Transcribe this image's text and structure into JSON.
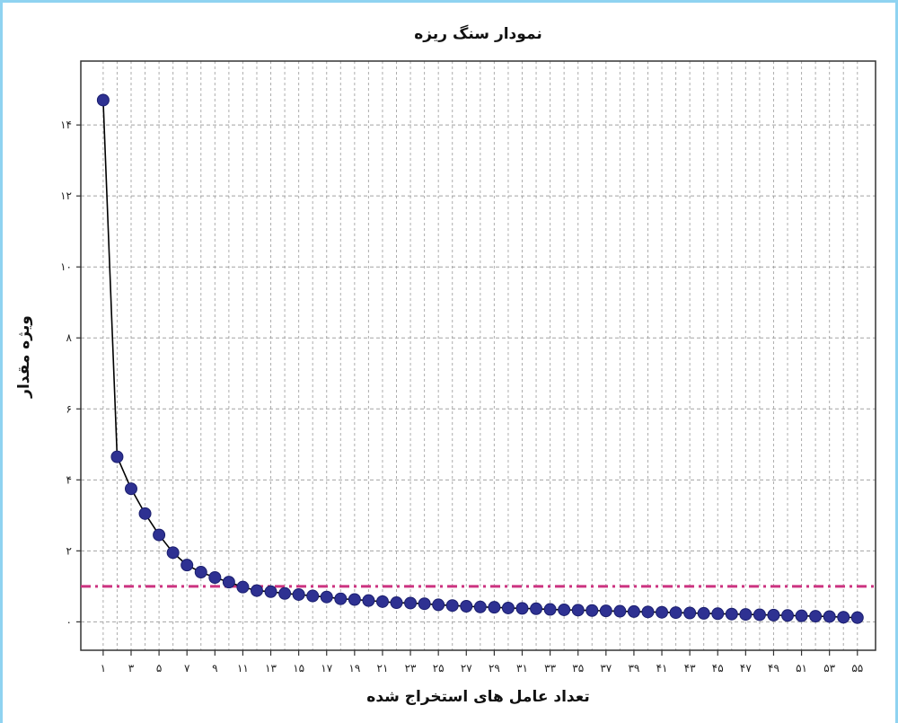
{
  "chart_data": {
    "type": "line",
    "title": "نمودار سنگ ریزه",
    "xlabel": "تعداد عامل های استخراج شده",
    "ylabel": "ویژه مقدار",
    "x": [
      1,
      2,
      3,
      4,
      5,
      6,
      7,
      8,
      9,
      10,
      11,
      12,
      13,
      14,
      15,
      16,
      17,
      18,
      19,
      20,
      21,
      22,
      23,
      24,
      25,
      26,
      27,
      28,
      29,
      30,
      31,
      32,
      33,
      34,
      35,
      36,
      37,
      38,
      39,
      40,
      41,
      42,
      43,
      44,
      45,
      46,
      47,
      48,
      49,
      50,
      51,
      52,
      53,
      54,
      55
    ],
    "x_tick_values": [
      1,
      3,
      5,
      7,
      9,
      11,
      13,
      15,
      17,
      19,
      21,
      23,
      25,
      27,
      29,
      31,
      33,
      35,
      37,
      39,
      41,
      43,
      45,
      47,
      49,
      51,
      53,
      55
    ],
    "x_tick_labels": [
      "۱",
      "۳",
      "۵",
      "۷",
      "۹",
      "۱۱",
      "۱۳",
      "۱۵",
      "۱۷",
      "۱۹",
      "۲۱",
      "۲۳",
      "۲۵",
      "۲۷",
      "۲۹",
      "۳۱",
      "۳۳",
      "۳۵",
      "۳۷",
      "۳۹",
      "۴۱",
      "۴۳",
      "۴۵",
      "۴۷",
      "۴۹",
      "۵۱",
      "۵۳",
      "۵۵"
    ],
    "y_tick_values": [
      0,
      2,
      4,
      6,
      8,
      10,
      12,
      14
    ],
    "y_tick_labels": [
      "۰",
      "۲",
      "۴",
      "۶",
      "۸",
      "۱۰",
      "۱۲",
      "۱۴"
    ],
    "xlim": [
      -0.6,
      56.3
    ],
    "ylim": [
      -0.8,
      15.8
    ],
    "grid": true,
    "series": [
      {
        "values": [
          14.7,
          4.65,
          3.75,
          3.05,
          2.45,
          1.95,
          1.6,
          1.4,
          1.25,
          1.12,
          0.98,
          0.88,
          0.85,
          0.8,
          0.77,
          0.73,
          0.7,
          0.65,
          0.63,
          0.6,
          0.57,
          0.54,
          0.53,
          0.51,
          0.48,
          0.46,
          0.44,
          0.42,
          0.41,
          0.39,
          0.38,
          0.37,
          0.35,
          0.34,
          0.33,
          0.32,
          0.31,
          0.3,
          0.29,
          0.28,
          0.27,
          0.26,
          0.25,
          0.24,
          0.23,
          0.22,
          0.21,
          0.2,
          0.19,
          0.18,
          0.17,
          0.16,
          0.15,
          0.13,
          0.12
        ]
      }
    ],
    "reference_line": {
      "y": 1.0,
      "color": "#cc3380",
      "style": "dash-dot"
    },
    "colors": {
      "marker_fill": "#2e3192",
      "marker_stroke": "#1a1e6e",
      "line": "#000000",
      "grid": "#999999"
    }
  }
}
